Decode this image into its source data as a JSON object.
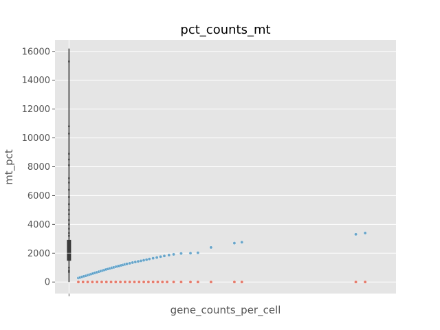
{
  "chart_data": {
    "type": "scatter",
    "title": "pct_counts_mt",
    "xlabel": "gene_counts_per_cell",
    "ylabel": "mt_pct",
    "ylim": [
      -800,
      16800
    ],
    "yticks": [
      "0",
      "2000",
      "4000",
      "6000",
      "8000",
      "10000",
      "12000",
      "14000",
      "16000"
    ],
    "xlim": [
      -0.15,
      3.5
    ],
    "xticks": [
      ""
    ],
    "grid": true,
    "legend": "none",
    "colors": {
      "blue": "#348abd",
      "red": "#e24a33",
      "boxplot": "#3b3b3b",
      "panel": "#e5e5e5",
      "grid": "#ffffff"
    },
    "boxplot": {
      "x": 0,
      "min": 0,
      "q1": 1500,
      "median": 2000,
      "q3": 2900,
      "max": 16200,
      "outliers": [
        15300,
        10800,
        10300,
        8900,
        8500,
        8100,
        7200,
        6900,
        6400,
        5900,
        5400,
        5000,
        4700,
        4300,
        4000,
        3700,
        3400,
        3200,
        1000,
        800,
        700
      ]
    },
    "series": [
      {
        "color": "blue",
        "points": [
          [
            0.1,
            280
          ],
          [
            0.12,
            320
          ],
          [
            0.14,
            360
          ],
          [
            0.16,
            400
          ],
          [
            0.18,
            430
          ],
          [
            0.2,
            480
          ],
          [
            0.22,
            520
          ],
          [
            0.24,
            560
          ],
          [
            0.26,
            600
          ],
          [
            0.28,
            640
          ],
          [
            0.3,
            680
          ],
          [
            0.32,
            720
          ],
          [
            0.34,
            760
          ],
          [
            0.36,
            800
          ],
          [
            0.38,
            840
          ],
          [
            0.4,
            880
          ],
          [
            0.42,
            910
          ],
          [
            0.44,
            950
          ],
          [
            0.46,
            990
          ],
          [
            0.48,
            1020
          ],
          [
            0.5,
            1060
          ],
          [
            0.52,
            1090
          ],
          [
            0.54,
            1120
          ],
          [
            0.56,
            1160
          ],
          [
            0.58,
            1190
          ],
          [
            0.6,
            1230
          ],
          [
            0.62,
            1260
          ],
          [
            0.65,
            1300
          ],
          [
            0.68,
            1350
          ],
          [
            0.71,
            1390
          ],
          [
            0.74,
            1430
          ],
          [
            0.77,
            1470
          ],
          [
            0.8,
            1510
          ],
          [
            0.83,
            1550
          ],
          [
            0.86,
            1600
          ],
          [
            0.9,
            1650
          ],
          [
            0.94,
            1700
          ],
          [
            0.98,
            1760
          ],
          [
            1.02,
            1810
          ],
          [
            1.07,
            1870
          ],
          [
            1.12,
            1920
          ],
          [
            1.2,
            1980
          ],
          [
            1.3,
            2000
          ],
          [
            1.38,
            2030
          ],
          [
            1.52,
            2400
          ],
          [
            1.77,
            2700
          ],
          [
            1.85,
            2760
          ],
          [
            3.07,
            3310
          ],
          [
            3.17,
            3400
          ]
        ]
      },
      {
        "color": "red",
        "points": [
          [
            0.1,
            0
          ],
          [
            0.15,
            0
          ],
          [
            0.2,
            0
          ],
          [
            0.25,
            0
          ],
          [
            0.3,
            0
          ],
          [
            0.35,
            0
          ],
          [
            0.4,
            0
          ],
          [
            0.45,
            0
          ],
          [
            0.5,
            0
          ],
          [
            0.55,
            0
          ],
          [
            0.6,
            0
          ],
          [
            0.65,
            0
          ],
          [
            0.7,
            0
          ],
          [
            0.75,
            0
          ],
          [
            0.8,
            0
          ],
          [
            0.85,
            0
          ],
          [
            0.9,
            0
          ],
          [
            0.95,
            0
          ],
          [
            1.0,
            0
          ],
          [
            1.05,
            0
          ],
          [
            1.12,
            0
          ],
          [
            1.2,
            0
          ],
          [
            1.3,
            0
          ],
          [
            1.38,
            0
          ],
          [
            1.52,
            0
          ],
          [
            1.77,
            0
          ],
          [
            1.85,
            0
          ],
          [
            3.07,
            0
          ],
          [
            3.17,
            0
          ]
        ]
      }
    ]
  }
}
